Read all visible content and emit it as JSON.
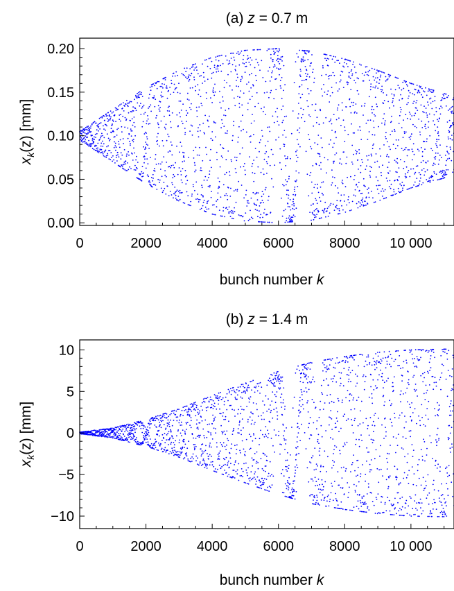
{
  "figure": {
    "series_color": "#0000ff"
  },
  "chart_data": [
    {
      "type": "scatter",
      "panel": "(a)",
      "title_prefix": "(a) ",
      "title_var": "z",
      "title_rest": " = 0.7 m",
      "xlabel_text": "bunch number ",
      "xlabel_var": "k",
      "ylabel_main": "x",
      "ylabel_sub": "k",
      "ylabel_rest": "(z) [mm]",
      "xlim": [
        0,
        11300
      ],
      "ylim": [
        -0.003,
        0.212
      ],
      "xticks": [
        {
          "value": 0,
          "label": "0"
        },
        {
          "value": 2000,
          "label": "2000"
        },
        {
          "value": 4000,
          "label": "4000"
        },
        {
          "value": 6000,
          "label": "6000"
        },
        {
          "value": 8000,
          "label": "8000"
        },
        {
          "value": 10000,
          "label": "10 000"
        }
      ],
      "yticks": [
        {
          "value": 0.0,
          "label": "0.00"
        },
        {
          "value": 0.05,
          "label": "0.05"
        },
        {
          "value": 0.1,
          "label": "0.10"
        },
        {
          "value": 0.15,
          "label": "0.15"
        },
        {
          "value": 0.2,
          "label": "0.20"
        }
      ],
      "series": [
        {
          "center": 0.1,
          "envelope": [
            [
              0,
              0.005
            ],
            [
              1000,
              0.03
            ],
            [
              2000,
              0.055
            ],
            [
              3000,
              0.075
            ],
            [
              4000,
              0.09
            ],
            [
              5000,
              0.098
            ],
            [
              6000,
              0.1
            ],
            [
              7000,
              0.097
            ],
            [
              8000,
              0.088
            ],
            [
              9000,
              0.075
            ],
            [
              10000,
              0.06
            ],
            [
              11300,
              0.045
            ]
          ]
        }
      ]
    },
    {
      "type": "scatter",
      "panel": "(b)",
      "title_prefix": "(b) ",
      "title_var": "z",
      "title_rest": " = 1.4 m",
      "xlabel_text": "bunch number ",
      "xlabel_var": "k",
      "ylabel_main": "x",
      "ylabel_sub": "k",
      "ylabel_rest": "(z) [mm]",
      "xlim": [
        0,
        11300
      ],
      "ylim": [
        -11.5,
        11.2
      ],
      "xticks": [
        {
          "value": 0,
          "label": "0"
        },
        {
          "value": 2000,
          "label": "2000"
        },
        {
          "value": 4000,
          "label": "4000"
        },
        {
          "value": 6000,
          "label": "6000"
        },
        {
          "value": 8000,
          "label": "8000"
        },
        {
          "value": 10000,
          "label": "10 000"
        }
      ],
      "yticks": [
        {
          "value": -10,
          "label": "−10"
        },
        {
          "value": -5,
          "label": "−5"
        },
        {
          "value": 0,
          "label": "0"
        },
        {
          "value": 5,
          "label": "5"
        },
        {
          "value": 10,
          "label": "10"
        }
      ],
      "series": [
        {
          "center": 0.0,
          "envelope": [
            [
              0,
              0.1
            ],
            [
              1000,
              0.6
            ],
            [
              2000,
              1.6
            ],
            [
              3000,
              2.9
            ],
            [
              4000,
              4.5
            ],
            [
              5000,
              6.0
            ],
            [
              6000,
              7.4
            ],
            [
              7000,
              8.5
            ],
            [
              8000,
              9.2
            ],
            [
              9000,
              9.7
            ],
            [
              10000,
              10.0
            ],
            [
              11300,
              10.1
            ]
          ]
        }
      ]
    }
  ]
}
